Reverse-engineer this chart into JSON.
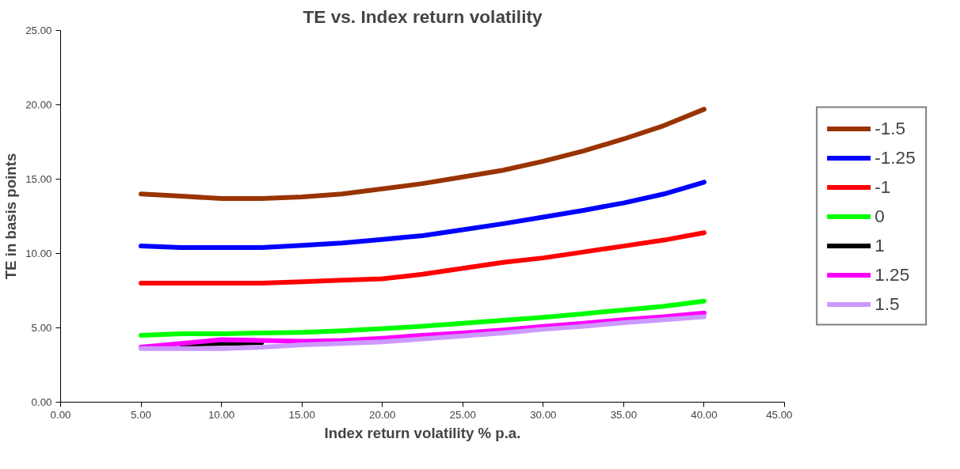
{
  "chart_data": {
    "type": "line",
    "title": "TE vs. Index return volatility",
    "xlabel": "Index return volatility % p.a.",
    "ylabel": "TE in basis points",
    "x": [
      5,
      7.5,
      10,
      12.5,
      15,
      17.5,
      20,
      22.5,
      25,
      27.5,
      30,
      32.5,
      35,
      37.5,
      40
    ],
    "series": [
      {
        "name": "-1.5",
        "color": "#993300",
        "values": [
          14.0,
          13.85,
          13.7,
          13.7,
          13.8,
          14.0,
          14.35,
          14.7,
          15.15,
          15.6,
          16.2,
          16.9,
          17.7,
          18.6,
          19.7
        ]
      },
      {
        "name": "-1.25",
        "color": "#0000ff",
        "values": [
          10.5,
          10.4,
          10.4,
          10.4,
          10.55,
          10.7,
          10.95,
          11.2,
          11.6,
          12.0,
          12.45,
          12.9,
          13.4,
          14.0,
          14.8
        ]
      },
      {
        "name": "-1",
        "color": "#ff0000",
        "values": [
          8.0,
          8.0,
          8.0,
          8.0,
          8.1,
          8.2,
          8.3,
          8.6,
          9.0,
          9.4,
          9.7,
          10.1,
          10.5,
          10.9,
          11.4
        ]
      },
      {
        "name": "0",
        "color": "#00ff00",
        "values": [
          4.5,
          4.6,
          4.6,
          4.65,
          4.7,
          4.8,
          4.95,
          5.1,
          5.3,
          5.5,
          5.7,
          5.95,
          6.2,
          6.45,
          6.8
        ]
      },
      {
        "name": "1",
        "color": "#000000",
        "values": [
          null,
          3.9,
          3.95,
          4.0,
          null,
          null,
          null,
          null,
          null,
          null,
          null,
          null,
          null,
          null,
          null
        ]
      },
      {
        "name": "1.25",
        "color": "#ff00ff",
        "values": [
          3.7,
          3.95,
          4.2,
          4.15,
          4.1,
          4.15,
          4.3,
          4.5,
          4.65,
          4.85,
          5.1,
          5.3,
          5.55,
          5.75,
          6.0
        ]
      },
      {
        "name": "1.5",
        "color": "#cc99ff",
        "values": [
          3.6,
          3.6,
          3.6,
          3.7,
          3.85,
          3.95,
          4.05,
          4.25,
          4.45,
          4.65,
          4.9,
          5.1,
          5.35,
          5.55,
          5.75
        ]
      }
    ],
    "xlim": [
      0,
      45
    ],
    "ylim": [
      0,
      25
    ],
    "xticks": [
      {
        "value": 0,
        "label": "0.00"
      },
      {
        "value": 5,
        "label": "5.00"
      },
      {
        "value": 10,
        "label": "10.00"
      },
      {
        "value": 15,
        "label": "15.00"
      },
      {
        "value": 20,
        "label": "20.00"
      },
      {
        "value": 25,
        "label": "25.00"
      },
      {
        "value": 30,
        "label": "30.00"
      },
      {
        "value": 35,
        "label": "35.00"
      },
      {
        "value": 40,
        "label": "40.00"
      },
      {
        "value": 45,
        "label": "45.00"
      }
    ],
    "yticks": [
      {
        "value": 0,
        "label": "0.00"
      },
      {
        "value": 5,
        "label": "5.00"
      },
      {
        "value": 10,
        "label": "10.00"
      },
      {
        "value": 15,
        "label": "15.00"
      },
      {
        "value": 20,
        "label": "20.00"
      },
      {
        "value": 25,
        "label": "25.00"
      }
    ],
    "grid": false,
    "legend": "right",
    "line_style": "solid"
  }
}
